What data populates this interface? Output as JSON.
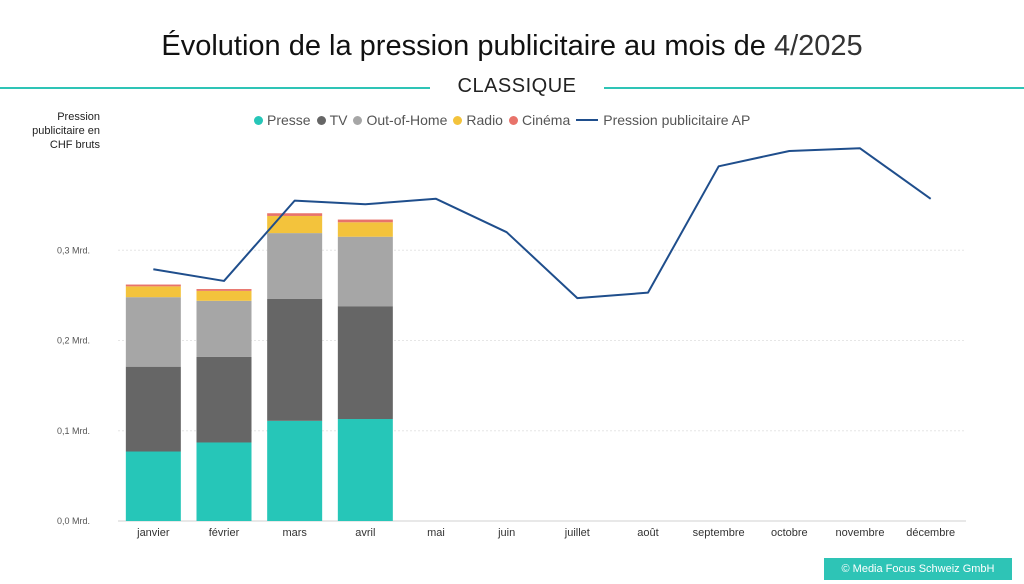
{
  "header": {
    "title_prefix": "Évolution de la pression publicitaire au mois de ",
    "title_month": "4/2025",
    "subtitle": "CLASSIQUE",
    "credit": "© Media Focus Schweiz GmbH"
  },
  "colors": {
    "accent": "#2ec4b6",
    "Presse": "#26c6b8",
    "TV": "#666666",
    "Out-of-Home": "#a6a6a6",
    "Radio": "#f3c33c",
    "Cinéma": "#e8736a",
    "line": "#1f4e8c"
  },
  "chart_data": {
    "type": "bar",
    "stacked": true,
    "ylabel": "Pression publicitaire en CHF bruts",
    "ylim": [
      0,
      0.4
    ],
    "yticks": [
      {
        "value": 0.0,
        "label": "0,0 Mrd."
      },
      {
        "value": 0.1,
        "label": "0,1 Mrd."
      },
      {
        "value": 0.2,
        "label": "0,2 Mrd."
      },
      {
        "value": 0.3,
        "label": "0,3 Mrd."
      }
    ],
    "grid": true,
    "legend_position": "top",
    "categories": [
      "janvier",
      "février",
      "mars",
      "avril",
      "mai",
      "juin",
      "juillet",
      "août",
      "septembre",
      "octobre",
      "novembre",
      "décembre"
    ],
    "series": [
      {
        "name": "Presse",
        "values": [
          0.077,
          0.087,
          0.111,
          0.113,
          null,
          null,
          null,
          null,
          null,
          null,
          null,
          null
        ]
      },
      {
        "name": "TV",
        "values": [
          0.094,
          0.095,
          0.135,
          0.125,
          null,
          null,
          null,
          null,
          null,
          null,
          null,
          null
        ]
      },
      {
        "name": "Out-of-Home",
        "values": [
          0.077,
          0.062,
          0.073,
          0.077,
          null,
          null,
          null,
          null,
          null,
          null,
          null,
          null
        ]
      },
      {
        "name": "Radio",
        "values": [
          0.012,
          0.011,
          0.019,
          0.016,
          null,
          null,
          null,
          null,
          null,
          null,
          null,
          null
        ]
      },
      {
        "name": "Cinéma",
        "values": [
          0.002,
          0.002,
          0.003,
          0.003,
          null,
          null,
          null,
          null,
          null,
          null,
          null,
          null
        ]
      }
    ],
    "line_series": {
      "name": "Pression publicitaire AP",
      "values": [
        0.279,
        0.266,
        0.355,
        0.351,
        0.357,
        0.32,
        0.247,
        0.253,
        0.393,
        0.41,
        0.413,
        0.357
      ]
    }
  }
}
